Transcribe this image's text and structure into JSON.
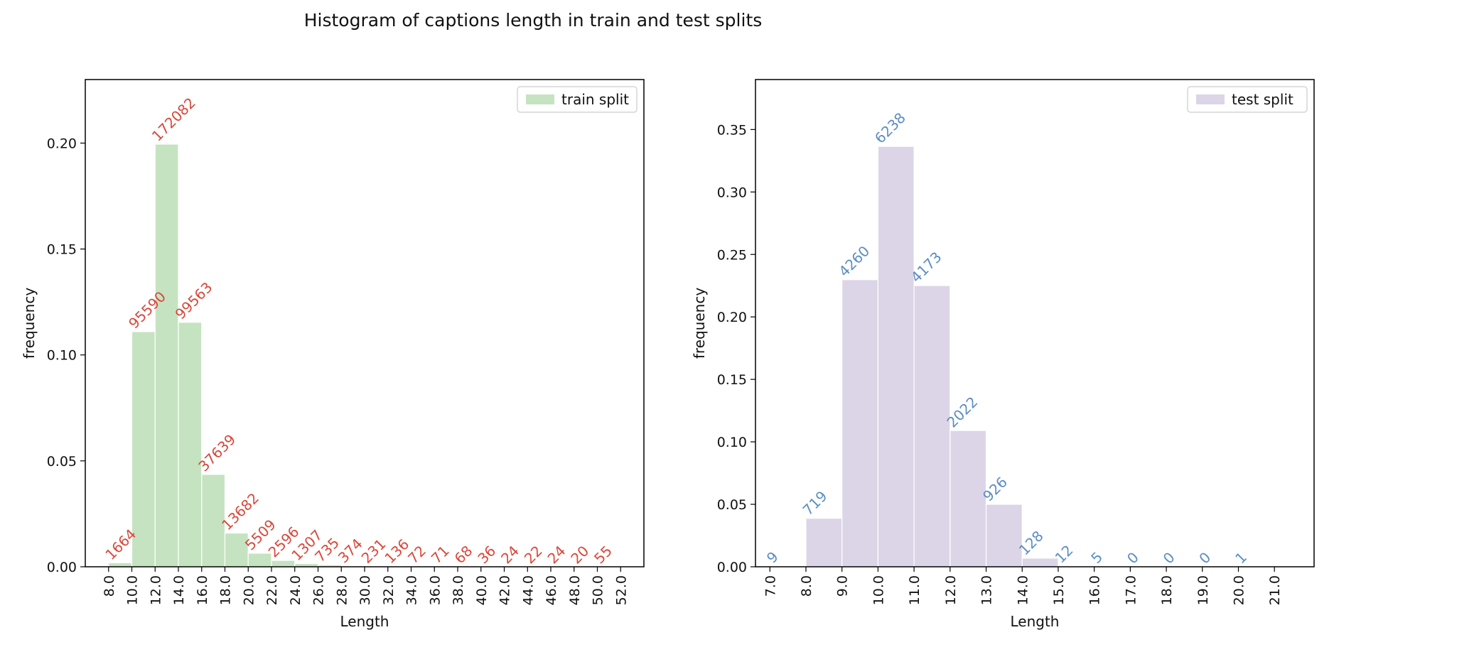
{
  "figure_title": "Histogram of captions length in train and test splits",
  "chart_data": [
    {
      "type": "bar",
      "subtype": "histogram",
      "legend": "train split",
      "legend_position": "top-right",
      "xlabel": "Length",
      "ylabel": "frequency",
      "color": "#c5e3c0",
      "label_color": "#d9483b",
      "xlim": [
        6,
        54
      ],
      "ylim": [
        0,
        0.23
      ],
      "bin_width": 2,
      "xticks": [
        8,
        10,
        12,
        14,
        16,
        18,
        20,
        22,
        24,
        26,
        28,
        30,
        32,
        34,
        36,
        38,
        40,
        42,
        44,
        46,
        48,
        50,
        52
      ],
      "xtick_labels": [
        "8.0",
        "10.0",
        "12.0",
        "14.0",
        "16.0",
        "18.0",
        "20.0",
        "22.0",
        "24.0",
        "26.0",
        "28.0",
        "30.0",
        "32.0",
        "34.0",
        "36.0",
        "38.0",
        "40.0",
        "42.0",
        "44.0",
        "46.0",
        "48.0",
        "50.0",
        "52.0"
      ],
      "yticks": [
        0,
        0.05,
        0.1,
        0.15,
        0.2
      ],
      "ytick_labels": [
        "0.00",
        "0.05",
        "0.10",
        "0.15",
        "0.20"
      ],
      "bins": [
        8,
        10,
        12,
        14,
        16,
        18,
        20,
        22,
        24,
        26,
        28,
        30,
        32,
        34,
        36,
        38,
        40,
        42,
        44,
        46,
        48,
        50
      ],
      "values": [
        0.0019,
        0.111,
        0.1995,
        0.1154,
        0.0436,
        0.0159,
        0.0064,
        0.003,
        0.0015,
        0.00085,
        0.00043,
        0.00027,
        0.00016,
        8e-05,
        8e-05,
        8e-05,
        4e-05,
        3e-05,
        3e-05,
        3e-05,
        2e-05,
        6e-05
      ],
      "counts": [
        "1664",
        "95590",
        "172082",
        "99563",
        "37639",
        "13682",
        "5509",
        "2596",
        "1307",
        "735",
        "374",
        "231",
        "136",
        "72",
        "71",
        "68",
        "36",
        "24",
        "22",
        "24",
        "20",
        "55"
      ]
    },
    {
      "type": "bar",
      "subtype": "histogram",
      "legend": "test split",
      "legend_position": "top-right",
      "xlabel": "Length",
      "ylabel": "frequency",
      "color": "#dcd5e7",
      "label_color": "#5b8ec4",
      "xlim": [
        6.6,
        22.1
      ],
      "ylim": [
        0,
        0.39
      ],
      "bin_width": 1,
      "xticks": [
        7,
        8,
        9,
        10,
        11,
        12,
        13,
        14,
        15,
        16,
        17,
        18,
        19,
        20,
        21
      ],
      "xtick_labels": [
        "7.0",
        "8.0",
        "9.0",
        "10.0",
        "11.0",
        "12.0",
        "13.0",
        "14.0",
        "15.0",
        "16.0",
        "17.0",
        "18.0",
        "19.0",
        "20.0",
        "21.0"
      ],
      "yticks": [
        0,
        0.05,
        0.1,
        0.15,
        0.2,
        0.25,
        0.3,
        0.35
      ],
      "ytick_labels": [
        "0.00",
        "0.05",
        "0.10",
        "0.15",
        "0.20",
        "0.25",
        "0.30",
        "0.35"
      ],
      "bins": [
        7,
        8,
        9,
        10,
        11,
        12,
        13,
        14,
        15,
        16,
        17,
        18,
        19,
        20
      ],
      "values": [
        0.0005,
        0.0388,
        0.2298,
        0.3365,
        0.2251,
        0.1091,
        0.05,
        0.0069,
        0.0006,
        0.0003,
        0,
        0,
        0,
        0.0001
      ],
      "counts": [
        "9",
        "719",
        "4260",
        "6238",
        "4173",
        "2022",
        "926",
        "128",
        "12",
        "5",
        "0",
        "0",
        "0",
        "1"
      ]
    }
  ]
}
